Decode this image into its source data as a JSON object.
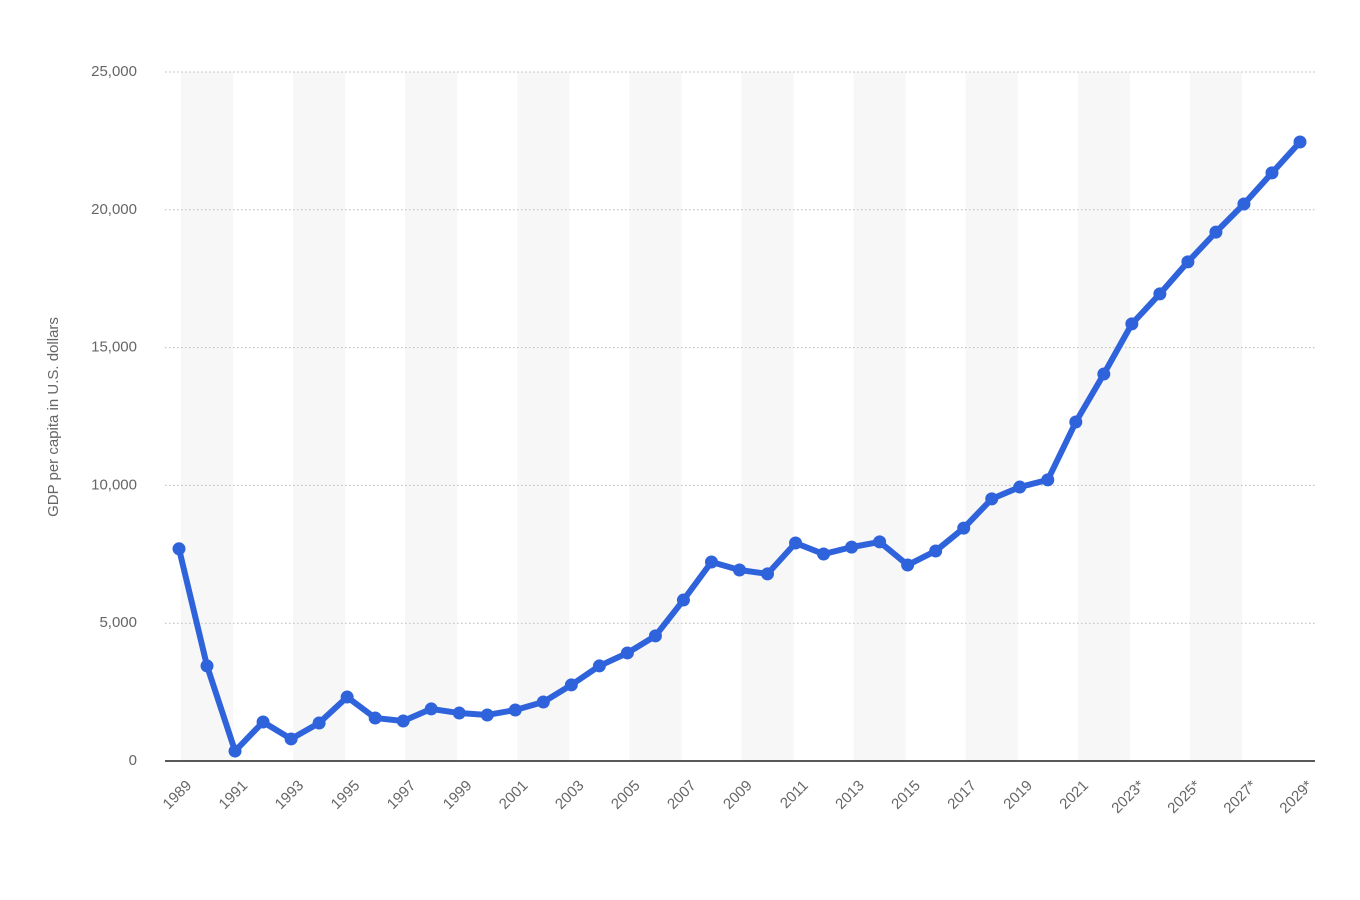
{
  "chart_data": {
    "type": "line",
    "y_label": "GDP per capita in U.S. dollars",
    "categories": [
      "1989",
      null,
      "1991",
      null,
      "1993",
      null,
      "1995",
      null,
      "1997",
      null,
      "1999",
      null,
      "2001",
      null,
      "2003",
      null,
      "2005",
      null,
      "2007",
      null,
      "2009",
      null,
      "2011",
      null,
      "2013",
      null,
      "2015",
      null,
      "2017",
      null,
      "2019",
      null,
      "2021",
      null,
      "2023*",
      null,
      "2025*",
      null,
      "2027*",
      null,
      "2029*"
    ],
    "series": [
      {
        "name": "GDP per capita",
        "color": "#2f63dc",
        "values": [
          7700,
          3450,
          360,
          1415,
          800,
          1380,
          2320,
          1560,
          1450,
          1890,
          1740,
          1670,
          1850,
          2140,
          2760,
          3450,
          3920,
          4540,
          5840,
          7220,
          6930,
          6790,
          7910,
          7510,
          7760,
          7950,
          7110,
          7620,
          8450,
          9510,
          9940,
          10200,
          12300,
          14040,
          15860,
          16950,
          18110,
          19190,
          20210,
          21340,
          22460
        ]
      }
    ],
    "ylim": [
      0,
      25000
    ],
    "yticks": [
      {
        "value": 0,
        "label": "0"
      },
      {
        "value": 5000,
        "label": "5,000"
      },
      {
        "value": 10000,
        "label": "10,000"
      },
      {
        "value": 15000,
        "label": "15,000"
      },
      {
        "value": 20000,
        "label": "20,000"
      },
      {
        "value": 25000,
        "label": "25,000"
      }
    ],
    "grid": true
  }
}
